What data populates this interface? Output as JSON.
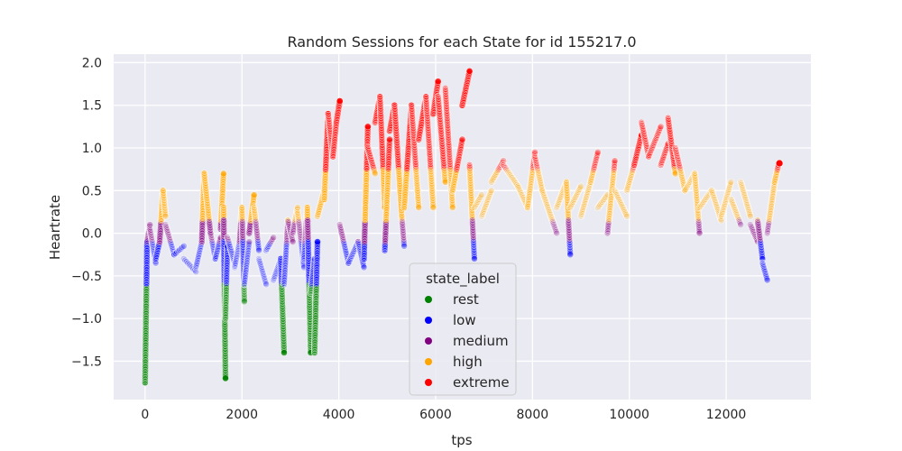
{
  "chart_data": {
    "type": "scatter",
    "title": "Random Sessions for each State for id 155217.0",
    "xlabel": "tps",
    "ylabel": "Heartrate",
    "xlim": [
      -650,
      13750
    ],
    "ylim": [
      -1.95,
      2.1
    ],
    "xticks": [
      0,
      2000,
      4000,
      6000,
      8000,
      10000,
      12000
    ],
    "xtick_labels": [
      "0",
      "2000",
      "4000",
      "6000",
      "8000",
      "10000",
      "12000"
    ],
    "yticks": [
      -1.5,
      -1.0,
      -0.5,
      0.0,
      0.5,
      1.0,
      1.5,
      2.0
    ],
    "ytick_labels": [
      "−1.5",
      "−1.0",
      "−0.5",
      "0.0",
      "0.5",
      "1.0",
      "1.5",
      "2.0"
    ],
    "grid": true,
    "background": "#eaeaf2",
    "legend": {
      "title": "state_label",
      "placement": "lower-center",
      "entries": [
        {
          "label": "rest",
          "color": "#008000"
        },
        {
          "label": "low",
          "color": "#0000ff"
        },
        {
          "label": "medium",
          "color": "#800080"
        },
        {
          "label": "high",
          "color": "#ffa500"
        },
        {
          "label": "extreme",
          "color": "#ff0000"
        }
      ]
    },
    "state_thresholds": [
      -0.6,
      -0.1,
      0.15,
      0.75
    ],
    "segments": [
      {
        "x": [
          0,
          40
        ],
        "y": [
          -1.75,
          -0.1
        ],
        "opacity": 0.9
      },
      {
        "x": [
          40,
          100
        ],
        "y": [
          -0.1,
          0.1
        ],
        "opacity": 0.3
      },
      {
        "x": [
          100,
          220
        ],
        "y": [
          0.05,
          -0.35
        ],
        "opacity": 0.25
      },
      {
        "x": [
          220,
          300
        ],
        "y": [
          -0.3,
          -0.1
        ],
        "opacity": 0.6
      },
      {
        "x": [
          300,
          370
        ],
        "y": [
          -0.1,
          0.5
        ],
        "opacity": 0.6
      },
      {
        "x": [
          370,
          420
        ],
        "y": [
          0.5,
          0.2
        ],
        "opacity": 0.3
      },
      {
        "x": [
          420,
          600
        ],
        "y": [
          0.1,
          -0.25
        ],
        "opacity": 0.25
      },
      {
        "x": [
          600,
          800
        ],
        "y": [
          -0.25,
          -0.15
        ],
        "opacity": 0.25
      },
      {
        "x": [
          800,
          1050
        ],
        "y": [
          -0.3,
          -0.45
        ],
        "opacity": 0.2
      },
      {
        "x": [
          1050,
          1170
        ],
        "y": [
          -0.4,
          -0.1
        ],
        "opacity": 0.25
      },
      {
        "x": [
          1170,
          1220
        ],
        "y": [
          -0.1,
          0.7
        ],
        "opacity": 0.6
      },
      {
        "x": [
          1220,
          1350
        ],
        "y": [
          0.7,
          0.0
        ],
        "opacity": 0.5
      },
      {
        "x": [
          1350,
          1450
        ],
        "y": [
          0.0,
          -0.3
        ],
        "opacity": 0.25
      },
      {
        "x": [
          1450,
          1560
        ],
        "y": [
          -0.3,
          -0.05
        ],
        "opacity": 0.3
      },
      {
        "x": [
          1560,
          1620
        ],
        "y": [
          0.05,
          0.7
        ],
        "opacity": 0.6
      },
      {
        "x": [
          1620,
          1660
        ],
        "y": [
          0.3,
          -1.7
        ],
        "opacity": 0.85
      },
      {
        "x": [
          1660,
          1700
        ],
        "y": [
          -1.0,
          -0.15
        ],
        "opacity": 0.5
      },
      {
        "x": [
          1700,
          1850
        ],
        "y": [
          -0.05,
          -0.35
        ],
        "opacity": 0.25
      },
      {
        "x": [
          1850,
          1950
        ],
        "y": [
          -0.4,
          -0.1
        ],
        "opacity": 0.2
      },
      {
        "x": [
          1950,
          2000
        ],
        "y": [
          -0.1,
          0.3
        ],
        "opacity": 0.4
      },
      {
        "x": [
          2000,
          2050
        ],
        "y": [
          0.3,
          -0.8
        ],
        "opacity": 0.4
      },
      {
        "x": [
          2050,
          2150
        ],
        "y": [
          -0.6,
          -0.1
        ],
        "opacity": 0.25
      },
      {
        "x": [
          2150,
          2250
        ],
        "y": [
          0.0,
          0.45
        ],
        "opacity": 0.6
      },
      {
        "x": [
          2250,
          2350
        ],
        "y": [
          0.3,
          -0.2
        ],
        "opacity": 0.3
      },
      {
        "x": [
          2350,
          2500
        ],
        "y": [
          -0.3,
          -0.6
        ],
        "opacity": 0.2
      },
      {
        "x": [
          2500,
          2650
        ],
        "y": [
          -0.2,
          -0.05
        ],
        "opacity": 0.25
      },
      {
        "x": [
          2650,
          2800
        ],
        "y": [
          -0.55,
          -0.3
        ],
        "opacity": 0.2
      },
      {
        "x": [
          2800,
          2870
        ],
        "y": [
          -0.3,
          -1.4
        ],
        "opacity": 0.7
      },
      {
        "x": [
          2870,
          2950
        ],
        "y": [
          -0.6,
          0.15
        ],
        "opacity": 0.3
      },
      {
        "x": [
          2950,
          3050
        ],
        "y": [
          0.15,
          -0.1
        ],
        "opacity": 0.3
      },
      {
        "x": [
          3050,
          3150
        ],
        "y": [
          0.0,
          0.3
        ],
        "opacity": 0.3
      },
      {
        "x": [
          3150,
          3280
        ],
        "y": [
          0.25,
          -0.4
        ],
        "opacity": 0.25
      },
      {
        "x": [
          3280,
          3350
        ],
        "y": [
          -0.3,
          0.3
        ],
        "opacity": 0.3
      },
      {
        "x": [
          3350,
          3420
        ],
        "y": [
          0.3,
          -1.4
        ],
        "opacity": 0.7
      },
      {
        "x": [
          3420,
          3500
        ],
        "y": [
          -0.7,
          -0.3
        ],
        "opacity": 0.4
      },
      {
        "x": [
          3500,
          3560
        ],
        "y": [
          -1.4,
          -0.1
        ],
        "opacity": 0.7
      },
      {
        "x": [
          3560,
          3700
        ],
        "y": [
          0.2,
          0.5
        ],
        "opacity": 0.4
      },
      {
        "x": [
          3700,
          3780
        ],
        "y": [
          0.4,
          1.4
        ],
        "opacity": 0.85
      },
      {
        "x": [
          3780,
          3880
        ],
        "y": [
          1.4,
          0.9
        ],
        "opacity": 0.4
      },
      {
        "x": [
          3880,
          3950
        ],
        "y": [
          0.9,
          1.3
        ],
        "opacity": 0.5
      },
      {
        "x": [
          3950,
          4020
        ],
        "y": [
          1.3,
          1.55
        ],
        "opacity": 0.9
      },
      {
        "x": [
          4020,
          4200
        ],
        "y": [
          0.1,
          -0.35
        ],
        "opacity": 0.3
      },
      {
        "x": [
          4200,
          4400
        ],
        "y": [
          -0.35,
          -0.1
        ],
        "opacity": 0.25
      },
      {
        "x": [
          4400,
          4520
        ],
        "y": [
          -0.1,
          -0.4
        ],
        "opacity": 0.3
      },
      {
        "x": [
          4520,
          4600
        ],
        "y": [
          -0.3,
          1.25
        ],
        "opacity": 0.8
      },
      {
        "x": [
          4600,
          4750
        ],
        "y": [
          1.0,
          0.7
        ],
        "opacity": 0.4
      },
      {
        "x": [
          4750,
          4850
        ],
        "y": [
          1.3,
          1.6
        ],
        "opacity": 0.6
      },
      {
        "x": [
          4850,
          4950
        ],
        "y": [
          1.6,
          0.3
        ],
        "opacity": 0.6
      },
      {
        "x": [
          4950,
          5050
        ],
        "y": [
          -0.2,
          1.1
        ],
        "opacity": 0.6
      },
      {
        "x": [
          5050,
          5150
        ],
        "y": [
          1.2,
          1.5
        ],
        "opacity": 0.7
      },
      {
        "x": [
          5150,
          5300
        ],
        "y": [
          1.5,
          0.2
        ],
        "opacity": 0.6
      },
      {
        "x": [
          5300,
          5350
        ],
        "y": [
          0.2,
          -0.15
        ],
        "opacity": 0.3
      },
      {
        "x": [
          5350,
          5500
        ],
        "y": [
          0.3,
          1.5
        ],
        "opacity": 0.7
      },
      {
        "x": [
          5500,
          5650
        ],
        "y": [
          1.5,
          0.3
        ],
        "opacity": 0.4
      },
      {
        "x": [
          5650,
          5800
        ],
        "y": [
          1.1,
          1.6
        ],
        "opacity": 0.7
      },
      {
        "x": [
          5800,
          5950
        ],
        "y": [
          1.6,
          0.3
        ],
        "opacity": 0.4
      },
      {
        "x": [
          5950,
          6050
        ],
        "y": [
          1.4,
          1.78
        ],
        "opacity": 0.8
      },
      {
        "x": [
          6050,
          6200
        ],
        "y": [
          1.6,
          0.6
        ],
        "opacity": 0.5
      },
      {
        "x": [
          6200,
          6350
        ],
        "y": [
          1.7,
          0.3
        ],
        "opacity": 0.4
      },
      {
        "x": [
          6350,
          6550
        ],
        "y": [
          0.5,
          1.1
        ],
        "opacity": 0.5
      },
      {
        "x": [
          6550,
          6700
        ],
        "y": [
          1.5,
          1.9
        ],
        "opacity": 0.85
      },
      {
        "x": [
          6700,
          6800
        ],
        "y": [
          0.8,
          -0.3
        ],
        "opacity": 0.4
      },
      {
        "x": [
          6800,
          6950
        ],
        "y": [
          0.3,
          0.45
        ],
        "opacity": 0.2
      },
      {
        "x": [
          6950,
          7150
        ],
        "y": [
          0.2,
          0.5
        ],
        "opacity": 0.2
      },
      {
        "x": [
          7150,
          7400
        ],
        "y": [
          0.6,
          0.85
        ],
        "opacity": 0.25
      },
      {
        "x": [
          7400,
          7700
        ],
        "y": [
          0.8,
          0.55
        ],
        "opacity": 0.2
      },
      {
        "x": [
          7700,
          7900
        ],
        "y": [
          0.55,
          0.3
        ],
        "opacity": 0.2
      },
      {
        "x": [
          7900,
          8050
        ],
        "y": [
          0.3,
          0.95
        ],
        "opacity": 0.3
      },
      {
        "x": [
          8050,
          8200
        ],
        "y": [
          0.9,
          0.5
        ],
        "opacity": 0.25
      },
      {
        "x": [
          8200,
          8500
        ],
        "y": [
          0.5,
          0.0
        ],
        "opacity": 0.2
      },
      {
        "x": [
          8500,
          8700
        ],
        "y": [
          0.3,
          0.6
        ],
        "opacity": 0.2
      },
      {
        "x": [
          8700,
          8780
        ],
        "y": [
          0.6,
          -0.25
        ],
        "opacity": 0.4
      },
      {
        "x": [
          8780,
          9000
        ],
        "y": [
          0.3,
          0.55
        ],
        "opacity": 0.2
      },
      {
        "x": [
          9000,
          9200
        ],
        "y": [
          0.2,
          0.6
        ],
        "opacity": 0.2
      },
      {
        "x": [
          9200,
          9350
        ],
        "y": [
          0.6,
          0.95
        ],
        "opacity": 0.3
      },
      {
        "x": [
          9350,
          9550
        ],
        "y": [
          0.3,
          0.45
        ],
        "opacity": 0.2
      },
      {
        "x": [
          9550,
          9700
        ],
        "y": [
          0.0,
          0.85
        ],
        "opacity": 0.3
      },
      {
        "x": [
          9700,
          9950
        ],
        "y": [
          0.5,
          0.2
        ],
        "opacity": 0.2
      },
      {
        "x": [
          9950,
          10100
        ],
        "y": [
          0.5,
          0.8
        ],
        "opacity": 0.25
      },
      {
        "x": [
          10100,
          10250
        ],
        "y": [
          0.8,
          1.15
        ],
        "opacity": 0.6
      },
      {
        "x": [
          10250,
          10400
        ],
        "y": [
          1.3,
          0.9
        ],
        "opacity": 0.35
      },
      {
        "x": [
          10400,
          10650
        ],
        "y": [
          0.9,
          1.25
        ],
        "opacity": 0.3
      },
      {
        "x": [
          10650,
          10800
        ],
        "y": [
          0.8,
          1.05
        ],
        "opacity": 0.35
      },
      {
        "x": [
          10800,
          10950
        ],
        "y": [
          1.35,
          0.7
        ],
        "opacity": 0.5
      },
      {
        "x": [
          10950,
          11150
        ],
        "y": [
          1.0,
          0.5
        ],
        "opacity": 0.3
      },
      {
        "x": [
          11150,
          11350
        ],
        "y": [
          0.5,
          0.7
        ],
        "opacity": 0.2
      },
      {
        "x": [
          11350,
          11450
        ],
        "y": [
          0.7,
          0.0
        ],
        "opacity": 0.3
      },
      {
        "x": [
          11450,
          11700
        ],
        "y": [
          0.3,
          0.5
        ],
        "opacity": 0.2
      },
      {
        "x": [
          11700,
          11900
        ],
        "y": [
          0.5,
          0.15
        ],
        "opacity": 0.2
      },
      {
        "x": [
          11900,
          12100
        ],
        "y": [
          0.2,
          0.6
        ],
        "opacity": 0.2
      },
      {
        "x": [
          12100,
          12300
        ],
        "y": [
          0.4,
          0.1
        ],
        "opacity": 0.2
      },
      {
        "x": [
          12300,
          12500
        ],
        "y": [
          0.6,
          0.2
        ],
        "opacity": 0.2
      },
      {
        "x": [
          12500,
          12650
        ],
        "y": [
          0.1,
          -0.1
        ],
        "opacity": 0.25
      },
      {
        "x": [
          12650,
          12750
        ],
        "y": [
          0.15,
          -0.3
        ],
        "opacity": 0.45
      },
      {
        "x": [
          12750,
          12850
        ],
        "y": [
          -0.35,
          -0.55
        ],
        "opacity": 0.3
      },
      {
        "x": [
          12850,
          13000
        ],
        "y": [
          0.0,
          0.6
        ],
        "opacity": 0.25
      },
      {
        "x": [
          13000,
          13080
        ],
        "y": [
          0.6,
          0.8
        ],
        "opacity": 0.4
      }
    ],
    "highlight_point": {
      "x": 13100,
      "y": 0.82
    }
  }
}
